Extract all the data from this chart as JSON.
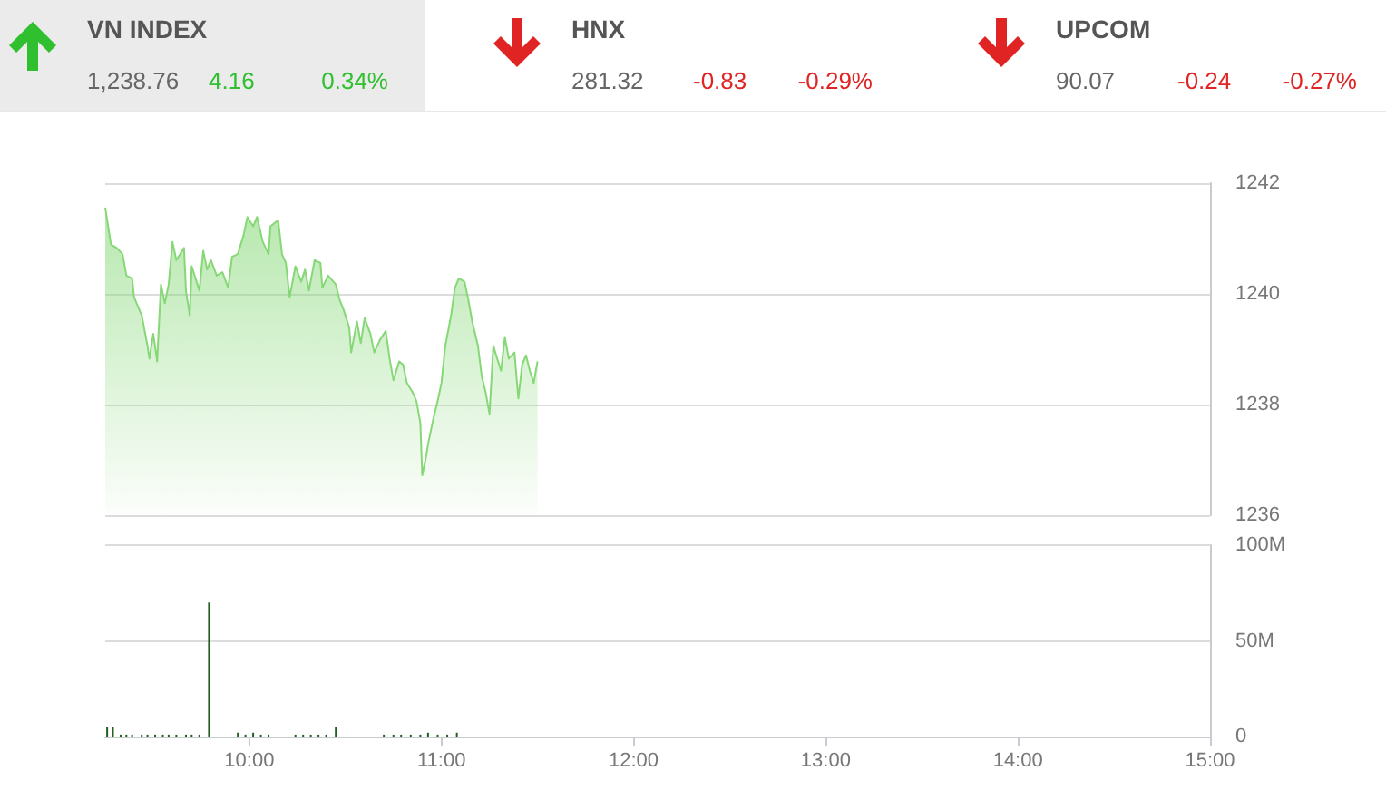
{
  "chart_data": [
    {
      "type": "other",
      "categories": [
        "VN INDEX",
        "HNX",
        "UPCOM"
      ],
      "series": [
        {
          "values": [
            1238.76,
            281.32,
            90.07
          ],
          "value_labels": [
            "1,238.76",
            "281.32",
            "90.07"
          ]
        },
        {
          "values": [
            4.16,
            -0.83,
            -0.24
          ],
          "value_labels": [
            "4.16",
            "-0.83",
            "-0.24"
          ],
          "colors": [
            "#2fbf2f",
            "#e02424",
            "#e02424"
          ]
        },
        {
          "values": [
            0.34,
            -0.29,
            -0.27
          ],
          "value_labels": [
            "0.34%",
            "-0.29%",
            "-0.27%"
          ],
          "colors": [
            "#2fbf2f",
            "#e02424",
            "#e02424"
          ]
        }
      ]
    },
    {
      "type": "area",
      "x": [
        9.25,
        9.28,
        9.31,
        9.34,
        9.36,
        9.39,
        9.4,
        9.44,
        9.47,
        9.48,
        9.5,
        9.52,
        9.54,
        9.56,
        9.58,
        9.6,
        9.62,
        9.66,
        9.67,
        9.69,
        9.7,
        9.74,
        9.76,
        9.78,
        9.8,
        9.83,
        9.86,
        9.89,
        9.91,
        9.94,
        9.97,
        9.99,
        10.02,
        10.04,
        10.07,
        10.1,
        10.11,
        10.15,
        10.17,
        10.19,
        10.21,
        10.24,
        10.27,
        10.29,
        10.31,
        10.34,
        10.37,
        10.38,
        10.41,
        10.45,
        10.47,
        10.49,
        10.52,
        10.53,
        10.56,
        10.58,
        10.6,
        10.63,
        10.65,
        10.68,
        10.71,
        10.73,
        10.75,
        10.78,
        10.8,
        10.82,
        10.85,
        10.87,
        10.89,
        10.9,
        10.92,
        10.93,
        10.96,
        10.98,
        11.0,
        11.02,
        11.05,
        11.07,
        11.09,
        11.12,
        11.14,
        11.16,
        11.19,
        11.21,
        11.23,
        11.25,
        11.27,
        11.29,
        11.31,
        11.33,
        11.35,
        11.38,
        11.4,
        11.42,
        11.44,
        11.46,
        11.48,
        11.5
      ],
      "values": [
        1241.56,
        1240.89,
        1240.83,
        1240.72,
        1240.33,
        1240.28,
        1239.94,
        1239.61,
        1239.06,
        1238.83,
        1239.28,
        1238.78,
        1240.17,
        1239.83,
        1240.17,
        1240.94,
        1240.61,
        1240.83,
        1240.06,
        1239.61,
        1240.5,
        1240.06,
        1240.78,
        1240.44,
        1240.61,
        1240.33,
        1240.39,
        1240.11,
        1240.67,
        1240.72,
        1241.06,
        1241.39,
        1241.22,
        1241.39,
        1240.94,
        1240.72,
        1241.22,
        1241.33,
        1240.72,
        1240.56,
        1239.94,
        1240.5,
        1240.22,
        1240.44,
        1240.06,
        1240.61,
        1240.56,
        1240.11,
        1240.33,
        1240.17,
        1239.89,
        1239.72,
        1239.39,
        1238.94,
        1239.5,
        1239.11,
        1239.56,
        1239.28,
        1238.94,
        1239.17,
        1239.33,
        1238.83,
        1238.44,
        1238.78,
        1238.72,
        1238.39,
        1238.22,
        1238.06,
        1237.67,
        1236.72,
        1237.06,
        1237.28,
        1237.78,
        1238.06,
        1238.39,
        1239.06,
        1239.61,
        1240.11,
        1240.28,
        1240.22,
        1239.89,
        1239.5,
        1239.06,
        1238.5,
        1238.22,
        1237.83,
        1239.06,
        1238.83,
        1238.61,
        1239.22,
        1238.83,
        1238.94,
        1238.11,
        1238.72,
        1238.89,
        1238.61,
        1238.39,
        1238.78
      ],
      "color": "#86d877",
      "xlim": [
        9.25,
        15
      ],
      "ylim": [
        1236,
        1242
      ],
      "yticks": [
        1236,
        1238,
        1240,
        1242
      ],
      "grid": "y",
      "marker": "none",
      "line_style": "solid",
      "tick_labels": "y"
    },
    {
      "type": "bar",
      "x": [
        9.26,
        9.29,
        9.33,
        9.36,
        9.39,
        9.44,
        9.47,
        9.51,
        9.55,
        9.58,
        9.62,
        9.67,
        9.7,
        9.74,
        9.79,
        9.94,
        9.98,
        10.02,
        10.06,
        10.1,
        10.24,
        10.28,
        10.32,
        10.36,
        10.4,
        10.45,
        10.7,
        10.75,
        10.79,
        10.84,
        10.89,
        10.93,
        10.98,
        11.03,
        11.08
      ],
      "values": [
        5,
        5,
        1,
        1,
        1,
        1,
        1,
        1,
        1,
        1,
        1,
        1,
        1,
        1,
        70,
        2,
        1,
        2,
        1,
        1,
        1,
        1,
        1,
        1,
        1,
        5,
        1,
        1,
        1,
        1,
        1,
        2,
        1,
        1,
        2
      ],
      "color": "#1f5f1f",
      "xlim": [
        9.25,
        15
      ],
      "xticks": [
        {
          "value": 10,
          "label": "10:00"
        },
        {
          "value": 11,
          "label": "11:00"
        },
        {
          "value": 12,
          "label": "12:00"
        },
        {
          "value": 13,
          "label": "13:00"
        },
        {
          "value": 14,
          "label": "14:00"
        },
        {
          "value": 15,
          "label": "15:00"
        }
      ],
      "ylim": [
        0,
        100
      ],
      "yticks": [
        0,
        {
          "value": 50,
          "label": "50M"
        },
        {
          "value": 100,
          "label": "100M"
        }
      ],
      "grid": "y"
    }
  ]
}
